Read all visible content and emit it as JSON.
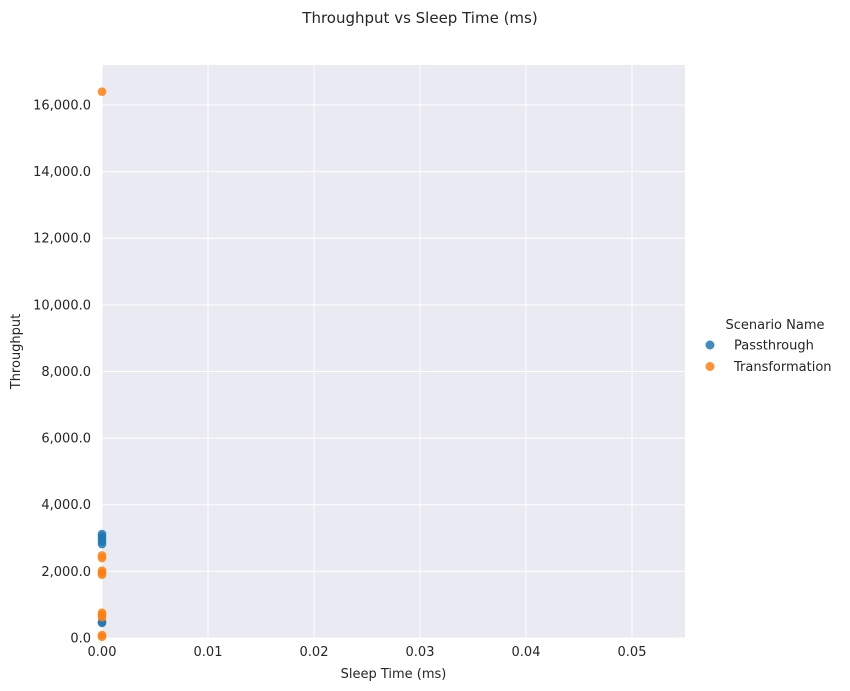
{
  "chart_data": {
    "type": "scatter",
    "title": "Throughput vs Sleep Time (ms)",
    "xlabel": "Sleep Time (ms)",
    "ylabel": "Throughput",
    "xlim": [
      0,
      0.055
    ],
    "ylim": [
      0,
      17200
    ],
    "xticks": [
      0,
      0.01,
      0.02,
      0.03,
      0.04,
      0.05
    ],
    "xtick_labels": [
      "0.00",
      "0.01",
      "0.02",
      "0.03",
      "0.04",
      "0.05"
    ],
    "yticks": [
      0,
      2000,
      4000,
      6000,
      8000,
      10000,
      12000,
      14000,
      16000
    ],
    "ytick_labels": [
      "0.0",
      "2,000.0",
      "4,000.0",
      "6,000.0",
      "8,000.0",
      "10,000.0",
      "12,000.0",
      "14,000.0",
      "16,000.0"
    ],
    "grid": true,
    "legend_title": "Scenario Name",
    "legend_position": "right",
    "series": [
      {
        "name": "Passthrough",
        "color": "#1f77b4",
        "points": [
          {
            "x": 0,
            "y": 3120
          },
          {
            "x": 0,
            "y": 3050
          },
          {
            "x": 0,
            "y": 2980
          },
          {
            "x": 0,
            "y": 2900
          },
          {
            "x": 0,
            "y": 2820
          },
          {
            "x": 0,
            "y": 480
          },
          {
            "x": 0,
            "y": 450
          }
        ]
      },
      {
        "name": "Transformation",
        "color": "#ff7f0e",
        "points": [
          {
            "x": 0,
            "y": 16400
          },
          {
            "x": 0,
            "y": 2480
          },
          {
            "x": 0,
            "y": 2400
          },
          {
            "x": 0,
            "y": 2020
          },
          {
            "x": 0,
            "y": 1960
          },
          {
            "x": 0,
            "y": 1900
          },
          {
            "x": 0,
            "y": 760
          },
          {
            "x": 0,
            "y": 690
          },
          {
            "x": 0,
            "y": 620
          },
          {
            "x": 0,
            "y": 90
          },
          {
            "x": 0,
            "y": 40
          }
        ]
      }
    ]
  }
}
